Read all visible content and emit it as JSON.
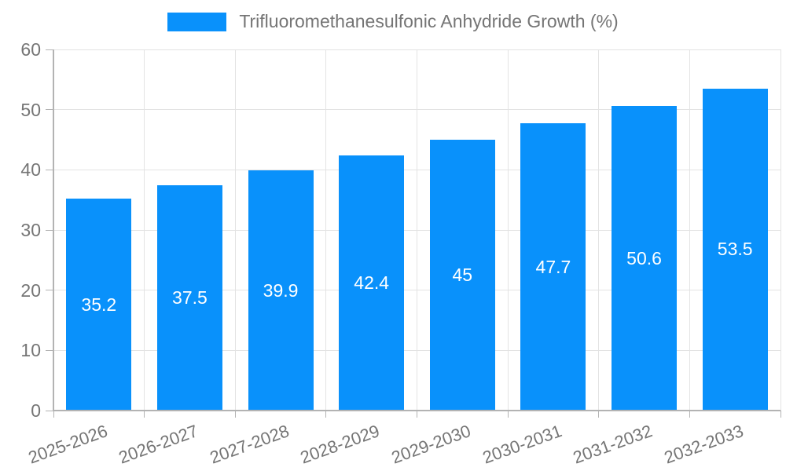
{
  "legend": {
    "label": "Trifluoromethanesulfonic Anhydride Growth (%)"
  },
  "colors": {
    "bar": "#0991fb",
    "grid": "#e3e3e3",
    "axis": "#b3b3b3",
    "tick_text": "#757575",
    "value_text": "#ffffff"
  },
  "chart_data": {
    "type": "bar",
    "title": "Trifluoromethanesulfonic Anhydride Growth (%)",
    "legend_entries": [
      "Trifluoromethanesulfonic Anhydride Growth (%)"
    ],
    "legend_position": "top",
    "categories": [
      "2025-2026",
      "2026-2027",
      "2027-2028",
      "2028-2029",
      "2029-2030",
      "2030-2031",
      "2031-2032",
      "2032-2033"
    ],
    "values": [
      35.2,
      37.5,
      39.9,
      42.4,
      45,
      47.7,
      50.6,
      53.5
    ],
    "value_labels": [
      "35.2",
      "37.5",
      "39.9",
      "42.4",
      "45",
      "47.7",
      "50.6",
      "53.5"
    ],
    "xlabel": "",
    "ylabel": "",
    "ylim": [
      0,
      60
    ],
    "yticks": [
      0,
      10,
      20,
      30,
      40,
      50,
      60
    ],
    "ytick_labels": [
      "0",
      "10",
      "20",
      "30",
      "40",
      "50",
      "60"
    ],
    "grid": true,
    "value_label_position": "center-inside"
  }
}
